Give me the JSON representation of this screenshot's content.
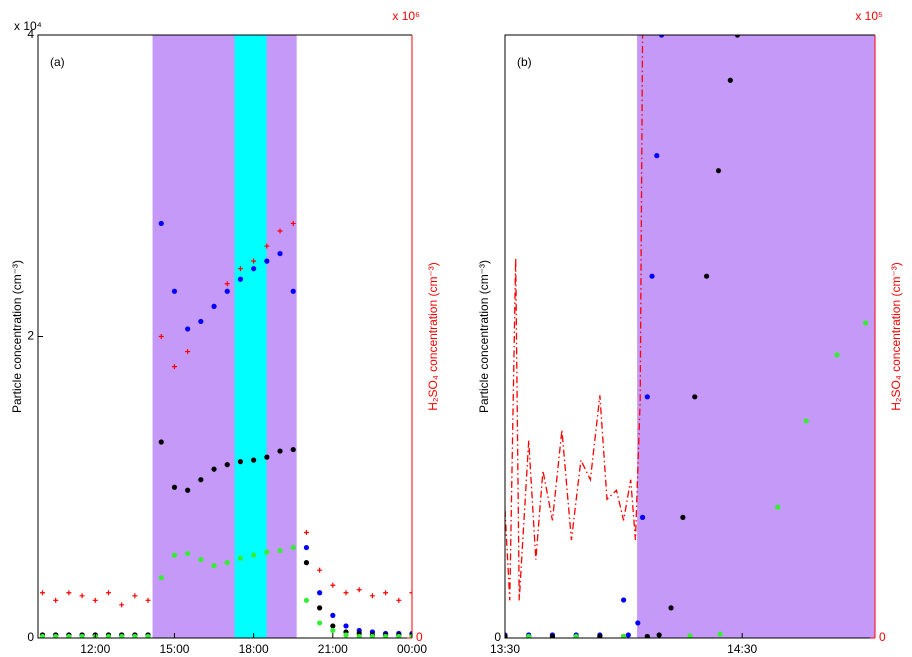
{
  "chart_data": [
    {
      "type": "scatter",
      "panel_label": "(a)",
      "y_label": "Particle concentration (cm⁻³)",
      "y2_label": "H₂SO₄ concentration (cm⁻³)",
      "y_multiplier": "x 10⁴",
      "y2_multiplier": "x 10⁶",
      "xlim": [
        9.83,
        24
      ],
      "xticks": [
        {
          "value": 12,
          "label": "12:00"
        },
        {
          "value": 15,
          "label": "15:00"
        },
        {
          "value": 18,
          "label": "18:00"
        },
        {
          "value": 21,
          "label": "21:00"
        },
        {
          "value": 24,
          "label": "00:00"
        }
      ],
      "ylim": [
        0,
        4
      ],
      "yticks": [
        0,
        2,
        4
      ],
      "y2lim": [
        0,
        4
      ],
      "y2ticks": [
        0
      ],
      "y2_color": "#ff0000",
      "shaded_regions": [
        {
          "x0": 14.17,
          "x1": 19.63,
          "color": "#c599f7"
        },
        {
          "x0": 17.28,
          "x1": 18.49,
          "color": "#00ffff"
        }
      ],
      "x": [
        10,
        10.5,
        11,
        11.5,
        12,
        12.5,
        13,
        13.5,
        14,
        14.5,
        15,
        15.5,
        16,
        16.5,
        17,
        17.5,
        18,
        18.5,
        19,
        19.5,
        20,
        20.5,
        21,
        21.5,
        22,
        22.5,
        23,
        23.5,
        24
      ],
      "series": [
        {
          "color": "#ff0000",
          "marker": "plus",
          "axis": "y2",
          "values": [
            0.3,
            0.25,
            0.3,
            0.28,
            0.25,
            0.3,
            0.22,
            0.28,
            0.25,
            2.0,
            1.8,
            1.9,
            2.1,
            2.2,
            2.35,
            2.45,
            2.5,
            2.6,
            2.7,
            2.75,
            0.7,
            0.45,
            0.35,
            0.3,
            0.32,
            0.28,
            0.3,
            0.25,
            0.3
          ]
        },
        {
          "color": "#0000ff",
          "marker": "circle",
          "values": [
            0.02,
            0.02,
            0.02,
            0.02,
            0.02,
            0.02,
            0.02,
            0.02,
            0.02,
            2.75,
            2.3,
            2.05,
            2.1,
            2.2,
            2.3,
            2.38,
            2.45,
            2.5,
            2.55,
            2.3,
            0.6,
            0.3,
            0.15,
            0.08,
            0.05,
            0.04,
            0.03,
            0.03,
            0.03
          ]
        },
        {
          "color": "#000000",
          "marker": "circle",
          "values": [
            0.02,
            0.02,
            0.02,
            0.02,
            0.02,
            0.02,
            0.02,
            0.02,
            0.02,
            1.3,
            1.0,
            0.98,
            1.05,
            1.12,
            1.15,
            1.17,
            1.18,
            1.2,
            1.24,
            1.25,
            0.5,
            0.2,
            0.08,
            0.04,
            0.03,
            0.02,
            0.02,
            0.02,
            0.02
          ]
        },
        {
          "color": "#33ee33",
          "marker": "circle",
          "values": [
            0.01,
            0.01,
            0.01,
            0.01,
            0.01,
            0.01,
            0.01,
            0.01,
            0.01,
            0.4,
            0.55,
            0.56,
            0.52,
            0.48,
            0.5,
            0.53,
            0.55,
            0.57,
            0.58,
            0.6,
            0.25,
            0.1,
            0.05,
            0.02,
            0.01,
            0.01,
            0.01,
            0.01,
            0.01
          ]
        }
      ]
    },
    {
      "type": "scatter",
      "panel_label": "(b)",
      "y_label": "Particle concentration (cm⁻³)",
      "y2_label": "H₂SO₄ concentration (cm⁻³)",
      "y2_multiplier": "x 10⁵",
      "xlim": [
        13.5,
        15.06
      ],
      "xticks": [
        {
          "value": 13.5,
          "label": "13:30"
        },
        {
          "value": 14.5,
          "label": "14:30"
        }
      ],
      "ylim": [
        0,
        2000
      ],
      "yticks": [
        0
      ],
      "y2lim": [
        0,
        4
      ],
      "y2ticks": [
        0
      ],
      "y2_color": "#ff0000",
      "shaded_regions": [
        {
          "x0": 14.057,
          "x1": 15.06,
          "color": "#c599f7"
        }
      ],
      "series": [
        {
          "color": "#0000ff",
          "marker": "circle",
          "x": [
            13.5,
            13.6,
            13.7,
            13.8,
            13.9,
            14.0,
            14.02,
            14.06,
            14.08,
            14.1,
            14.12,
            14.14,
            14.16
          ],
          "values": [
            10,
            10,
            10,
            10,
            10,
            126,
            10,
            50,
            400,
            800,
            1200,
            1600,
            2000
          ]
        },
        {
          "color": "#000000",
          "marker": "circle",
          "x": [
            13.5,
            13.6,
            13.7,
            13.8,
            13.9,
            14.0,
            14.1,
            14.15,
            14.2,
            14.25,
            14.3,
            14.35,
            14.4,
            14.45,
            14.48
          ],
          "values": [
            5,
            5,
            5,
            5,
            5,
            5,
            5,
            10,
            100,
            400,
            800,
            1200,
            1550,
            1850,
            2000
          ]
        },
        {
          "color": "#33ee33",
          "marker": "circle",
          "x": [
            13.6,
            13.8,
            14.0,
            14.28,
            14.407,
            14.65,
            14.77,
            14.9,
            15.02
          ],
          "values": [
            5,
            5,
            5,
            7,
            13,
            434,
            720,
            939,
            1045
          ]
        },
        {
          "color": "#ff0000",
          "marker": "dashdot",
          "axis": "y2",
          "x": [
            13.5,
            13.52,
            13.545,
            13.56,
            13.6,
            13.63,
            13.66,
            13.7,
            13.74,
            13.78,
            13.82,
            13.86,
            13.9,
            13.93,
            13.97,
            14.0,
            14.03,
            14.05,
            14.07,
            14.08
          ],
          "values": [
            0.85,
            0.25,
            2.52,
            0.25,
            1.31,
            0.52,
            1.11,
            0.78,
            1.38,
            0.65,
            1.18,
            1.05,
            1.61,
            0.92,
            0.98,
            0.78,
            1.05,
            0.65,
            1.58,
            4.0
          ]
        }
      ]
    }
  ]
}
